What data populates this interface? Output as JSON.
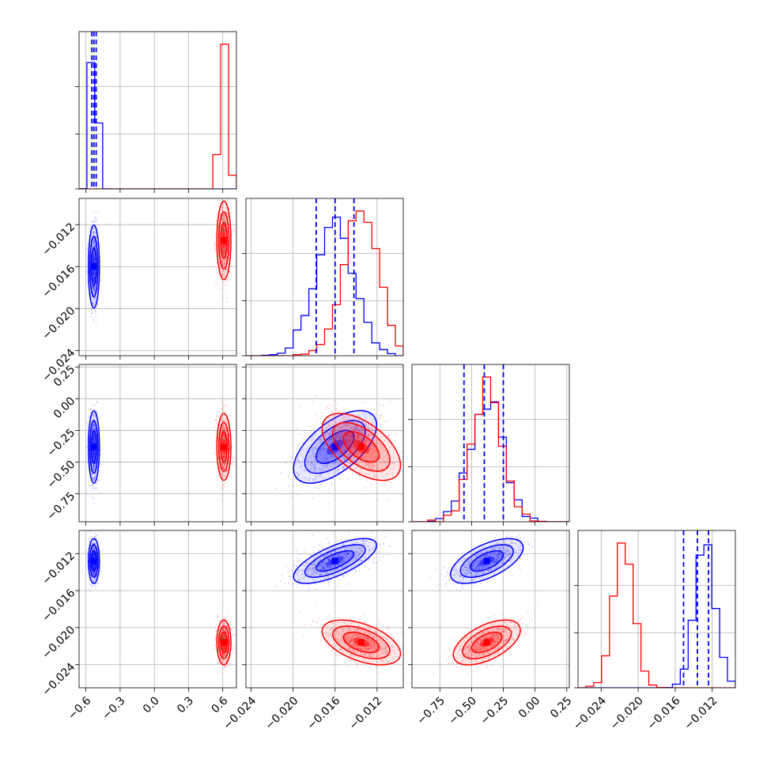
{
  "chart_data": {
    "type": "corner",
    "title": "",
    "series": [
      {
        "name": "",
        "color": "#0000ff"
      },
      {
        "name": "",
        "color": "#ff0000"
      }
    ],
    "axes": [
      {
        "index": 0,
        "range": [
          -0.66,
          0.72
        ],
        "ticks": [
          -0.6,
          -0.3,
          0.0,
          0.3,
          0.6
        ],
        "tick_labels": [
          "−0.6",
          "−0.3",
          "0.0",
          "0.3",
          "0.6"
        ]
      },
      {
        "index": 1,
        "range": [
          -0.0245,
          -0.0095
        ],
        "ticks": [
          -0.024,
          -0.02,
          -0.016,
          -0.012
        ],
        "tick_labels": [
          "−0.024",
          "−0.020",
          "−0.016",
          "−0.012"
        ]
      },
      {
        "index": 2,
        "range": [
          -0.97,
          0.27
        ],
        "ticks": [
          -0.75,
          -0.5,
          -0.25,
          0.0,
          0.25
        ],
        "tick_labels": [
          "−0.75",
          "−0.50",
          "−0.25",
          "0.00",
          "0.25"
        ]
      },
      {
        "index": 3,
        "range": [
          -0.0265,
          -0.0095
        ],
        "ticks": [
          -0.024,
          -0.02,
          -0.016,
          -0.012
        ],
        "tick_labels": [
          "−0.024",
          "−0.020",
          "−0.016",
          "−0.012"
        ]
      }
    ],
    "distributions": {
      "blue": {
        "mean": [
          -0.53,
          -0.016,
          -0.38,
          -0.0128
        ],
        "std": [
          0.022,
          0.0018,
          0.13,
          0.0011
        ],
        "corr": {
          "1-2": 0.6,
          "1-3": 0.7,
          "2-3": 0.6
        }
      },
      "red": {
        "mean": [
          0.61,
          -0.0135,
          -0.38,
          -0.0216
        ],
        "std": [
          0.028,
          0.0017,
          0.12,
          0.0011
        ],
        "corr": {
          "1-2": -0.55,
          "1-3": -0.5,
          "2-3": 0.55
        }
      }
    },
    "quantiles_blue": [
      {
        "axis": 0,
        "values": [
          -0.548,
          -0.53,
          -0.51
        ]
      },
      {
        "axis": 1,
        "values": [
          -0.0178,
          -0.016,
          -0.0142
        ]
      },
      {
        "axis": 2,
        "values": [
          -0.56,
          -0.4,
          -0.25
        ]
      },
      {
        "axis": 3,
        "values": [
          -0.0151,
          -0.0136,
          -0.0124
        ]
      }
    ],
    "grid": true
  }
}
